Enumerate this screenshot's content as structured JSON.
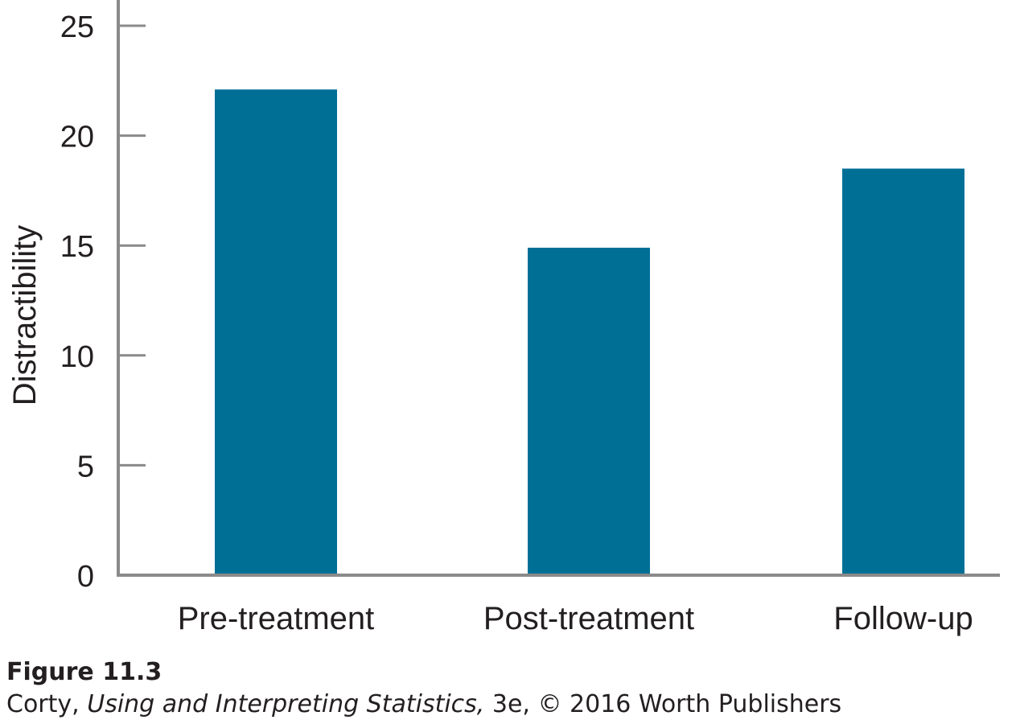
{
  "chart_data": {
    "type": "bar",
    "title": "",
    "xlabel": "",
    "ylabel": "Distractibility",
    "categories": [
      "Pre-treatment",
      "Post-treatment",
      "Follow-up"
    ],
    "values": [
      22.1,
      14.9,
      18.5
    ],
    "ylim": [
      0,
      25
    ],
    "yticks": [
      0,
      5,
      10,
      15,
      20,
      25
    ],
    "grid": false,
    "bar_color": "#006f96",
    "axis_color": "#8a8a8a"
  },
  "caption": {
    "figure_label": "Figure 11.3",
    "author": "Corty, ",
    "book_title": "Using and Interpreting Statistics,",
    "rest": " 3e, © 2016 Worth Publishers"
  }
}
